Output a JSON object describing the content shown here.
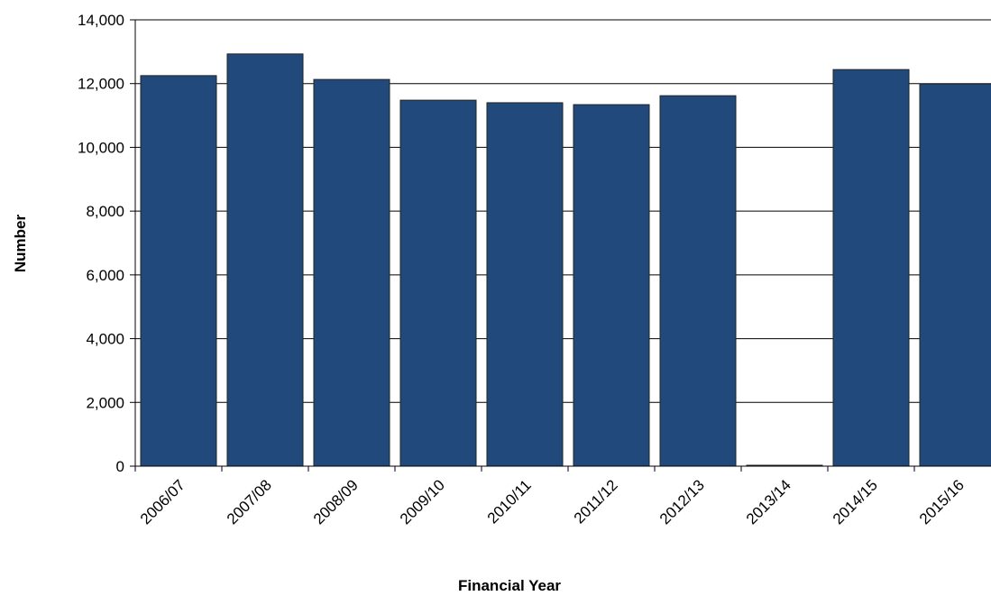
{
  "chart_data": {
    "type": "bar",
    "x_label": "Financial Year",
    "y_label": "Number",
    "categories": [
      "2006/07",
      "2007/08",
      "2008/09",
      "2009/10",
      "2010/11",
      "2011/12",
      "2012/13",
      "2013/14",
      "2014/15",
      "2015/16"
    ],
    "values": [
      12250,
      12930,
      12130,
      11480,
      11400,
      11340,
      11620,
      0,
      12440,
      11990
    ],
    "color": "#21497c",
    "ylim": [
      0,
      14000
    ],
    "yticks": [
      0,
      {
        "value": 2000,
        "label": "2,000"
      },
      {
        "value": 4000,
        "label": "4,000"
      },
      {
        "value": 6000,
        "label": "6,000"
      },
      {
        "value": 8000,
        "label": "8,000"
      },
      {
        "value": 10000,
        "label": "10,000"
      },
      {
        "value": 12000,
        "label": "12,000"
      },
      {
        "value": 14000,
        "label": "14,000"
      }
    ],
    "grid": true
  }
}
